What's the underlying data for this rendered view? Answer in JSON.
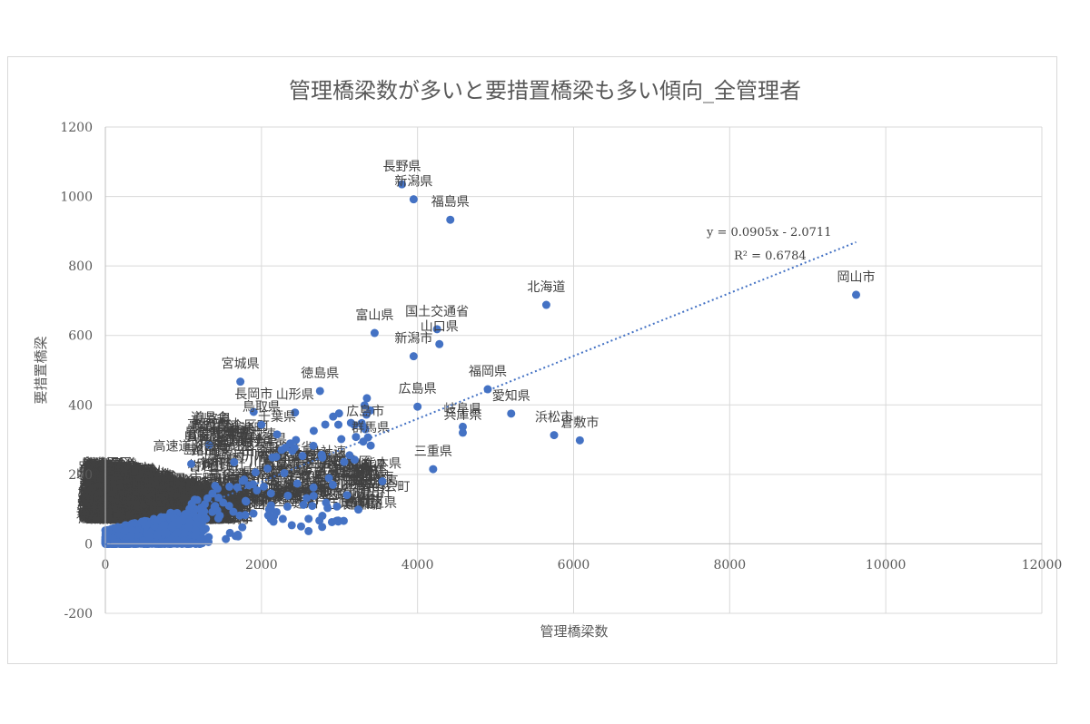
{
  "chart_data": {
    "type": "scatter",
    "title": "管理橋梁数が多いと要措置橋梁も多い傾向_全管理者",
    "xlabel": "管理橋梁数",
    "ylabel": "要措置橋梁",
    "xlim": [
      0,
      12000
    ],
    "ylim": [
      -200,
      1200
    ],
    "x_ticks": [
      0,
      2000,
      4000,
      6000,
      8000,
      10000,
      12000
    ],
    "y_ticks": [
      -200,
      0,
      200,
      400,
      600,
      800,
      1000,
      1200
    ],
    "grid": "vertical and horizontal major gridlines",
    "point_color": "#4472c4",
    "labeled_points": [
      {
        "label": "長野県",
        "x": 3800,
        "y": 1035
      },
      {
        "label": "新潟県",
        "x": 3950,
        "y": 992
      },
      {
        "label": "福島県",
        "x": 4420,
        "y": 933
      },
      {
        "label": "北海道",
        "x": 5650,
        "y": 688
      },
      {
        "label": "岡山市",
        "x": 9620,
        "y": 717
      },
      {
        "label": "国土交通省",
        "x": 4250,
        "y": 618
      },
      {
        "label": "山口県",
        "x": 4280,
        "y": 575
      },
      {
        "label": "富山県",
        "x": 3450,
        "y": 607
      },
      {
        "label": "新潟市",
        "x": 3950,
        "y": 540
      },
      {
        "label": "福岡県",
        "x": 4900,
        "y": 445
      },
      {
        "label": "愛知県",
        "x": 5200,
        "y": 375
      },
      {
        "label": "広島県",
        "x": 4000,
        "y": 395
      },
      {
        "label": "岐阜県",
        "x": 4580,
        "y": 337
      },
      {
        "label": "兵庫県",
        "x": 4580,
        "y": 320
      },
      {
        "label": "浜松市",
        "x": 5750,
        "y": 313
      },
      {
        "label": "倉敷市",
        "x": 6080,
        "y": 298
      },
      {
        "label": "三重県",
        "x": 4200,
        "y": 215
      },
      {
        "label": "熊本県",
        "x": 3550,
        "y": 180
      },
      {
        "label": "宮城県",
        "x": 1730,
        "y": 467
      },
      {
        "label": "徳島県",
        "x": 2750,
        "y": 440
      },
      {
        "label": "長岡市",
        "x": 1900,
        "y": 380
      },
      {
        "label": "山形県",
        "x": 2430,
        "y": 378
      },
      {
        "label": "鳥取県",
        "x": 2000,
        "y": 343
      },
      {
        "label": "鳥取市",
        "x": 1330,
        "y": 285
      },
      {
        "label": "広島市",
        "x": 3330,
        "y": 330
      },
      {
        "label": "千葉県",
        "x": 2200,
        "y": 315
      },
      {
        "label": "群馬県",
        "x": 3400,
        "y": 283
      },
      {
        "label": "香川県",
        "x": 1650,
        "y": 235
      },
      {
        "label": "高速道路会社",
        "x": 1100,
        "y": 230
      }
    ],
    "trendline": {
      "type": "linear",
      "equation": "y = 0.0905x - 2.0711",
      "r2": "R² = 0.6784",
      "x_range": [
        0,
        9620
      ]
    }
  }
}
